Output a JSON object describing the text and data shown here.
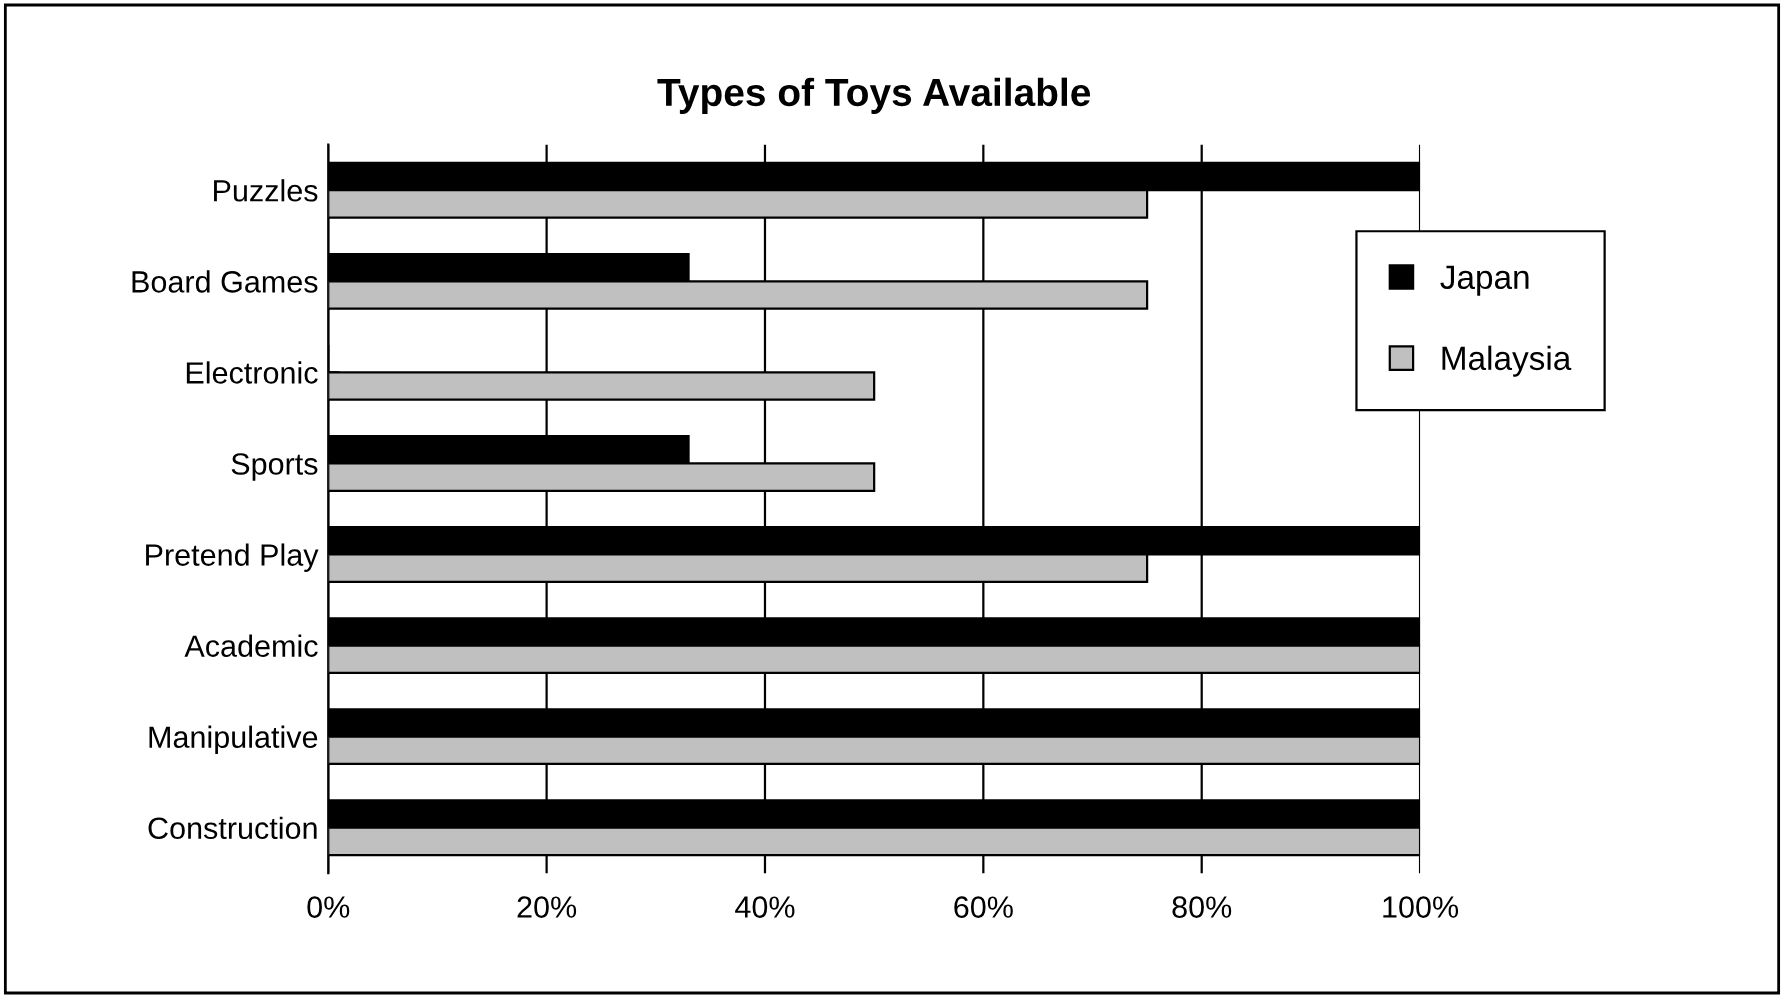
{
  "chart_data": {
    "type": "bar",
    "orientation": "horizontal",
    "title": "Types of Toys Available",
    "categories": [
      "Puzzles",
      "Board Games",
      "Electronic",
      "Sports",
      "Pretend Play",
      "Academic",
      "Manipulative",
      "Construction"
    ],
    "series": [
      {
        "name": "Japan",
        "color": "#000000",
        "values": [
          100,
          33,
          0,
          33,
          100,
          100,
          100,
          100
        ]
      },
      {
        "name": "Malaysia",
        "color": "#c0c0c0",
        "values": [
          75,
          75,
          50,
          50,
          75,
          100,
          100,
          100
        ]
      }
    ],
    "xlim": [
      0,
      100
    ],
    "xticks": [
      {
        "value": 0,
        "label": "0%"
      },
      {
        "value": 20,
        "label": "20%"
      },
      {
        "value": 40,
        "label": "40%"
      },
      {
        "value": 60,
        "label": "60%"
      },
      {
        "value": 80,
        "label": "80%"
      },
      {
        "value": 100,
        "label": "100%"
      }
    ],
    "grid": "x",
    "legend": "top right"
  }
}
